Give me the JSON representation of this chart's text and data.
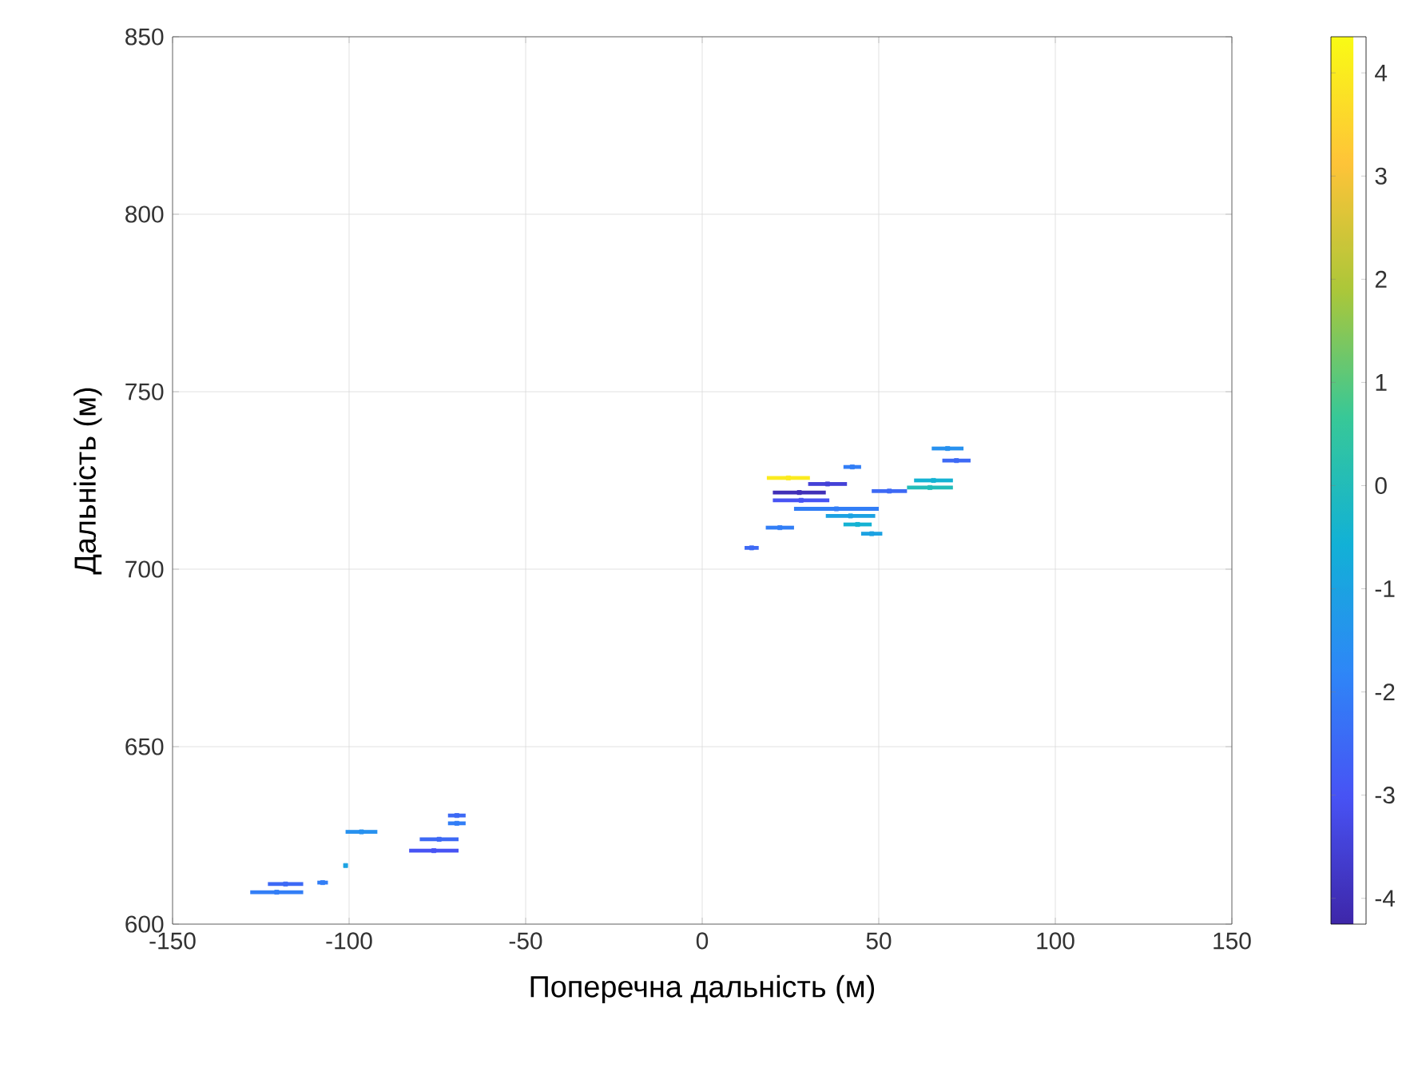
{
  "chart_data": {
    "type": "scatter",
    "xlabel": "Поперечна дальність (м)",
    "ylabel": "Дальність (м)",
    "x": [
      24.4,
      35.5,
      27.5,
      28,
      38,
      42,
      44,
      48,
      22,
      14,
      42.5,
      53,
      65.5,
      69.5,
      72,
      64.5,
      -120.5,
      -118,
      -107.5,
      -96.5,
      -76,
      -74.5,
      -69.5,
      -69.5,
      -101
    ],
    "values": [
      725.7,
      724,
      721.6,
      719.4,
      717,
      715,
      712.6,
      710,
      711.7,
      706,
      728.8,
      722,
      725,
      734,
      730.6,
      723,
      609,
      611.3,
      611.7,
      626,
      620.7,
      623.9,
      628.4,
      630.6,
      616.5
    ],
    "xerrors": [
      6.1,
      5.5,
      7.5,
      8,
      12,
      7,
      4,
      3,
      4,
      2,
      2.5,
      5,
      5.5,
      4.5,
      4,
      6.5,
      7.5,
      5,
      1.5,
      4.5,
      7,
      5.5,
      2.5,
      2.5,
      null
    ],
    "cvalues": [
      4,
      -3.5,
      -4,
      -3,
      -2,
      -1,
      -0.5,
      -1,
      -2,
      -2.5,
      -2,
      -2.5,
      -0.5,
      -1.5,
      -2.5,
      0,
      -2,
      -2.5,
      -2,
      -1.5,
      -3,
      -2.5,
      -2,
      -2.5,
      -1
    ],
    "clim": [
      -4.25,
      4.35
    ],
    "cticks": [
      -4,
      -3,
      -2,
      -1,
      0,
      1,
      2,
      3,
      4
    ],
    "xlim": [
      -150,
      150
    ],
    "ylim": [
      600,
      850
    ],
    "xticks": [
      -150,
      -100,
      -50,
      0,
      50,
      100,
      150
    ],
    "yticks": [
      600,
      650,
      700,
      750,
      800,
      850
    ],
    "grid": true,
    "marker": "square"
  }
}
